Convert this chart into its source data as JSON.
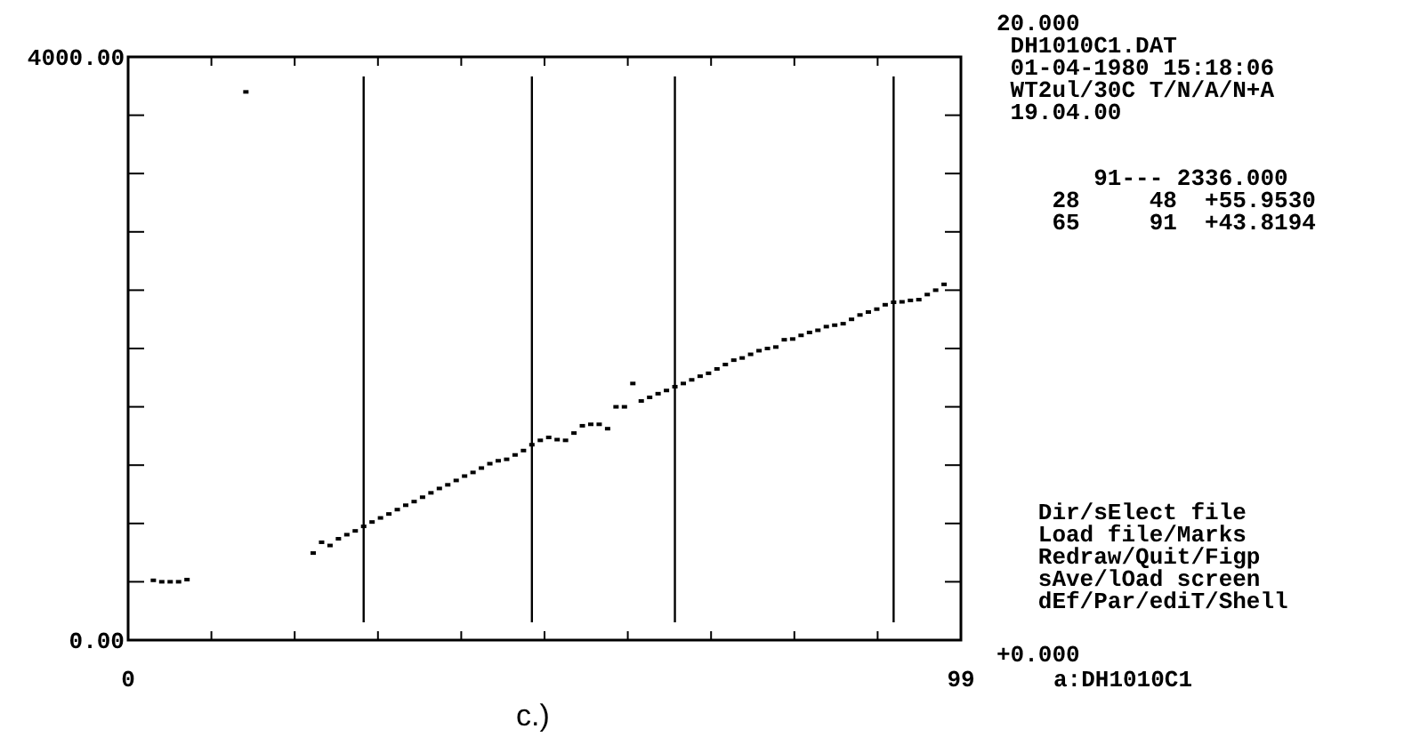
{
  "chart_data": {
    "type": "scatter",
    "marker": "square",
    "grid": false,
    "xlim": [
      0,
      99
    ],
    "ylim": [
      0,
      4000
    ],
    "xticks": [
      {
        "value": 0,
        "label": "0"
      },
      {
        "value": 9.9,
        "label": null
      },
      {
        "value": 19.8,
        "label": null
      },
      {
        "value": 29.7,
        "label": null
      },
      {
        "value": 39.6,
        "label": null
      },
      {
        "value": 49.5,
        "label": null
      },
      {
        "value": 59.4,
        "label": null
      },
      {
        "value": 69.3,
        "label": null
      },
      {
        "value": 79.2,
        "label": null
      },
      {
        "value": 89.1,
        "label": null
      },
      {
        "value": 99,
        "label": "99"
      }
    ],
    "yticks": [
      {
        "value": 0,
        "label": "0.00"
      },
      {
        "value": 400,
        "label": null
      },
      {
        "value": 800,
        "label": null
      },
      {
        "value": 1200,
        "label": null
      },
      {
        "value": 1600,
        "label": null
      },
      {
        "value": 2000,
        "label": null
      },
      {
        "value": 2400,
        "label": null
      },
      {
        "value": 2800,
        "label": null
      },
      {
        "value": 3200,
        "label": null
      },
      {
        "value": 3600,
        "label": null
      },
      {
        "value": 4000,
        "label": "4000.00"
      }
    ],
    "ref_lines": [
      {
        "axis": "x",
        "value": 28,
        "color": "#000000"
      },
      {
        "axis": "x",
        "value": 48,
        "color": "#000000"
      },
      {
        "axis": "x",
        "value": 65,
        "color": "#000000"
      },
      {
        "axis": "x",
        "value": 91,
        "color": "#000000"
      }
    ],
    "series": [
      {
        "color": "#000000",
        "x": [
          3,
          4,
          5,
          6,
          7,
          14,
          22,
          23,
          24,
          25,
          26,
          27,
          28,
          29,
          30,
          31,
          32,
          33,
          34,
          35,
          36,
          37,
          38,
          39,
          40,
          41,
          42,
          43,
          44,
          45,
          46,
          47,
          48,
          49,
          50,
          51,
          52,
          53,
          54,
          55,
          56,
          57,
          58,
          59,
          60,
          61,
          62,
          63,
          64,
          65,
          66,
          67,
          68,
          69,
          70,
          71,
          72,
          73,
          74,
          75,
          76,
          77,
          78,
          79,
          80,
          81,
          82,
          83,
          84,
          85,
          86,
          87,
          88,
          89,
          90,
          91,
          92,
          93,
          94,
          95,
          96,
          97
        ],
        "values": [
          410,
          400,
          400,
          400,
          415,
          3760,
          597,
          671,
          649,
          695,
          723,
          749,
          780,
          810,
          838,
          865,
          895,
          925,
          950,
          980,
          1010,
          1040,
          1065,
          1095,
          1125,
          1150,
          1180,
          1210,
          1230,
          1240,
          1270,
          1300,
          1340,
          1370,
          1390,
          1375,
          1370,
          1420,
          1470,
          1480,
          1480,
          1450,
          1600,
          1600,
          1760,
          1640,
          1665,
          1690,
          1712,
          1738,
          1760,
          1785,
          1810,
          1830,
          1860,
          1890,
          1920,
          1935,
          1960,
          1985,
          2000,
          2010,
          2060,
          2065,
          2090,
          2110,
          2125,
          2150,
          2160,
          2170,
          2200,
          2230,
          2250,
          2270,
          2300,
          2317,
          2320,
          2330,
          2335,
          2370,
          2400,
          2440
        ]
      }
    ],
    "annotations": [
      "20.000",
      " DH1010C1.DAT",
      " 01-04-1980 15:18:06",
      " WT2ul/30C T/N/A/N+A",
      " 19.04.00",
      "       91--- 2336.000",
      "    28     48  +55.9530",
      "    65     91  +43.8194",
      "   Dir/sElect file",
      "   Load file/Marks",
      "   Redraw/Quit/Figp",
      "   sAve/lOad screen",
      "   dEf/Par/ediT/Shell",
      "+0.000",
      "a:DH1010C1",
      "c.)"
    ]
  }
}
